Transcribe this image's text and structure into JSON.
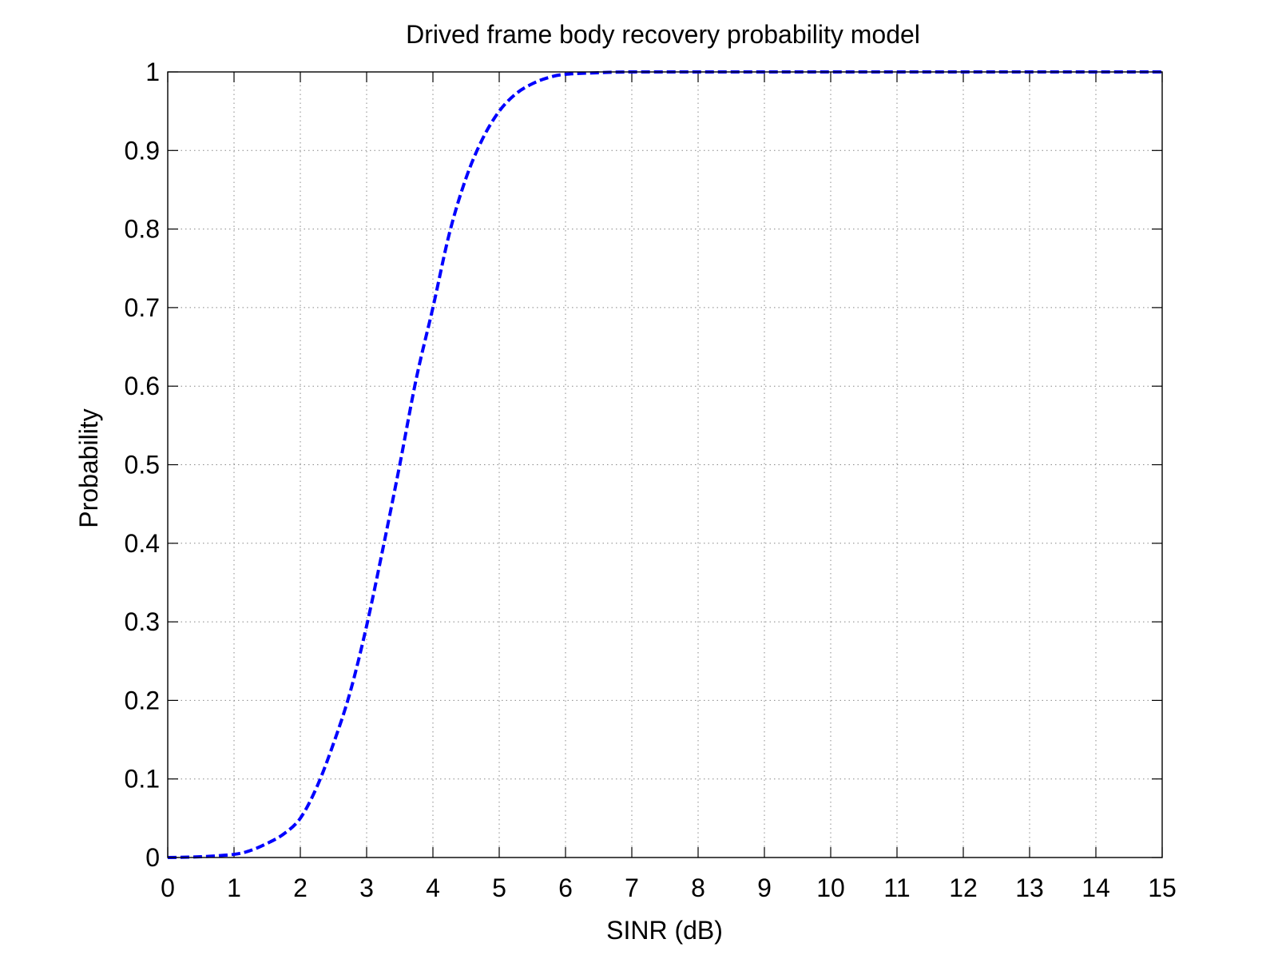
{
  "chart_data": {
    "type": "line",
    "title": "Drived frame body recovery probability model",
    "xlabel": "SINR (dB)",
    "ylabel": "Probability",
    "xlim": [
      0,
      15
    ],
    "ylim": [
      0,
      1
    ],
    "grid": true,
    "legend": null,
    "xticks": [
      0,
      1,
      2,
      3,
      4,
      5,
      6,
      7,
      8,
      9,
      10,
      11,
      12,
      13,
      14,
      15
    ],
    "xtick_labels": [
      "0",
      "1",
      "2",
      "3",
      "4",
      "5",
      "6",
      "7",
      "8",
      "9",
      "10",
      "11",
      "12",
      "13",
      "14",
      "15"
    ],
    "yticks": [
      0,
      0.1,
      0.2,
      0.3,
      0.4,
      0.5,
      0.6,
      0.7,
      0.8,
      0.9,
      1
    ],
    "ytick_labels": [
      "0",
      "0.1",
      "0.2",
      "0.3",
      "0.4",
      "0.5",
      "0.6",
      "0.7",
      "0.8",
      "0.9",
      "1"
    ],
    "series": [
      {
        "line_style": "dashed",
        "color": "#0000ff",
        "x": [
          0,
          0.5,
          1,
          1.25,
          1.5,
          1.75,
          2,
          2.25,
          2.5,
          2.75,
          3,
          3.25,
          3.5,
          3.75,
          4,
          4.25,
          4.5,
          4.75,
          5,
          5.25,
          5.5,
          5.75,
          6,
          6.5,
          7,
          8,
          9,
          10,
          11,
          12,
          13,
          14,
          15
        ],
        "y": [
          0.0,
          0.001,
          0.004,
          0.009,
          0.018,
          0.03,
          0.05,
          0.09,
          0.145,
          0.21,
          0.295,
          0.395,
          0.5,
          0.61,
          0.7,
          0.795,
          0.865,
          0.915,
          0.95,
          0.972,
          0.985,
          0.993,
          0.997,
          0.999,
          1.0,
          1.0,
          1.0,
          1.0,
          1.0,
          1.0,
          1.0,
          1.0,
          1.0
        ]
      }
    ]
  }
}
